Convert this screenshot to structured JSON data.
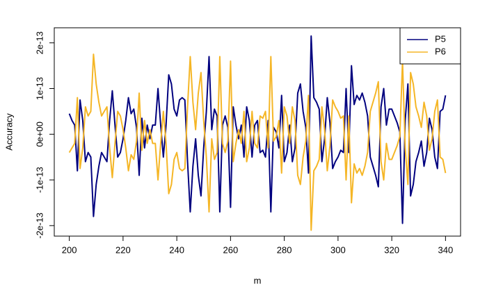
{
  "chart_data": {
    "type": "line",
    "xlabel": "m",
    "ylabel": "Accuracy",
    "x": [
      200,
      201,
      202,
      203,
      204,
      205,
      206,
      207,
      208,
      209,
      210,
      211,
      212,
      213,
      214,
      215,
      216,
      217,
      218,
      219,
      220,
      221,
      222,
      223,
      224,
      225,
      226,
      227,
      228,
      229,
      230,
      231,
      232,
      233,
      234,
      235,
      236,
      237,
      238,
      239,
      240,
      241,
      242,
      243,
      244,
      245,
      246,
      247,
      248,
      249,
      250,
      251,
      252,
      253,
      254,
      255,
      256,
      257,
      258,
      259,
      260,
      261,
      262,
      263,
      264,
      265,
      266,
      267,
      268,
      269,
      270,
      271,
      272,
      273,
      274,
      275,
      276,
      277,
      278,
      279,
      280,
      281,
      282,
      283,
      284,
      285,
      286,
      287,
      288,
      289,
      290,
      291,
      292,
      293,
      294,
      295,
      296,
      297,
      298,
      299,
      300,
      301,
      302,
      303,
      304,
      305,
      306,
      307,
      308,
      309,
      310,
      311,
      312,
      313,
      314,
      315,
      316,
      317,
      318,
      319,
      320,
      321,
      322,
      323,
      324,
      325,
      326,
      327,
      328,
      329,
      330,
      331,
      332,
      333,
      334,
      335,
      336,
      337,
      338,
      339,
      340
    ],
    "series": [
      {
        "name": "P5",
        "color": "#00007f",
        "values": [
          4.5e-14,
          3e-14,
          2e-14,
          -8e-14,
          7.5e-14,
          3e-14,
          -6e-14,
          -4e-14,
          -5e-14,
          -1.8e-13,
          -1.1e-13,
          -7e-14,
          -4e-14,
          -5e-14,
          -6e-14,
          3e-14,
          9.5e-14,
          2e-14,
          -5e-14,
          -4e-14,
          -1e-14,
          3e-14,
          8e-14,
          4.5e-14,
          5.5e-14,
          1.5e-14,
          -9e-14,
          3.5e-14,
          -3e-14,
          2e-14,
          -1e-14,
          2e-14,
          2e-14,
          1e-13,
          2e-14,
          -5e-14,
          2e-14,
          1.3e-13,
          1.1e-13,
          5.5e-14,
          4e-14,
          7.5e-14,
          8e-14,
          7.5e-14,
          -6e-14,
          -1.7e-13,
          -7e-14,
          -1e-14,
          -9e-14,
          -1.35e-13,
          -3e-14,
          5e-14,
          1.7e-13,
          1e-14,
          5.5e-14,
          4e-14,
          -1.7e-13,
          2e-14,
          4e-14,
          1.5e-14,
          -1.6e-13,
          6e-14,
          2e-14,
          -1e-14,
          2e-14,
          -5e-14,
          6e-14,
          3e-14,
          -5e-14,
          2e-14,
          3e-14,
          -4e-14,
          -3.5e-14,
          -5e-14,
          3e-14,
          -1.7e-13,
          1.5e-14,
          5e-15,
          -3e-14,
          8.5e-14,
          -6e-14,
          -4e-14,
          2e-14,
          -6e-14,
          -3e-14,
          9e-14,
          1.1e-13,
          5e-14,
          1.5e-14,
          -8.5e-14,
          2.15e-13,
          8e-14,
          7e-14,
          5.5e-14,
          -6e-14,
          -1e-14,
          8e-14,
          2.5e-14,
          -7.5e-14,
          -6e-14,
          -5e-14,
          -3.5e-14,
          -4e-14,
          1e-13,
          -4e-14,
          1.5e-13,
          6.5e-14,
          8.5e-14,
          7.5e-14,
          9e-14,
          7e-14,
          4e-14,
          -5e-14,
          -7e-14,
          -9e-14,
          -1.15e-13,
          6e-14,
          1e-13,
          2e-14,
          5.5e-14,
          5.5e-14,
          4e-14,
          2.5e-14,
          5e-15,
          -1.95e-13,
          3e-14,
          1.1e-13,
          -1.35e-13,
          -1.1e-13,
          -6e-14,
          -4e-14,
          -1.5e-14,
          -7e-14,
          -4e-14,
          3.5e-14,
          1e-14,
          -5e-14,
          -7.5e-14,
          5e-14,
          5.5e-14,
          8.5e-14
        ]
      },
      {
        "name": "P6",
        "color": "#f5b626",
        "values": [
          -4e-14,
          -3e-14,
          -2e-14,
          8e-14,
          -7.5e-14,
          -3e-14,
          6e-14,
          4e-14,
          5e-14,
          1.75e-13,
          1.1e-13,
          7e-14,
          4e-14,
          5e-14,
          6e-14,
          -3e-14,
          -9.5e-14,
          -2e-14,
          5e-14,
          4e-14,
          1e-14,
          -3e-14,
          -8e-14,
          -4.5e-14,
          -5.5e-14,
          -1.5e-14,
          9e-14,
          -3.5e-14,
          3e-14,
          -2e-14,
          1e-14,
          -2e-14,
          -2e-14,
          -1e-13,
          -2e-14,
          5e-14,
          -2e-14,
          -1.3e-13,
          -1.1e-13,
          -5.5e-14,
          -4e-14,
          -7.5e-14,
          -8e-14,
          -7.5e-14,
          6e-14,
          1.7e-13,
          7e-14,
          1e-14,
          9e-14,
          1.35e-13,
          3e-14,
          -5e-14,
          -1.7e-13,
          -1e-14,
          -5.5e-14,
          -4e-14,
          1.7e-13,
          -2e-14,
          -4e-14,
          -1.5e-14,
          1.6e-13,
          -6e-14,
          -2e-14,
          1e-14,
          -2e-14,
          5e-14,
          -6e-14,
          -3e-14,
          5e-14,
          -2e-14,
          -3e-14,
          4e-14,
          3.5e-14,
          5e-14,
          -3e-14,
          1.7e-13,
          -1.5e-14,
          -5e-15,
          3e-14,
          -8.5e-14,
          6e-14,
          4e-14,
          -2e-14,
          6e-14,
          3e-14,
          -9e-14,
          -1.1e-13,
          -5e-14,
          -1.5e-14,
          8.5e-14,
          -2.1e-13,
          -8e-14,
          -7e-14,
          -5.5e-14,
          6e-14,
          1e-14,
          -8e-14,
          -2.5e-14,
          7.5e-14,
          6e-14,
          5e-14,
          3.5e-14,
          4e-14,
          -1e-13,
          4e-14,
          -1.5e-13,
          -6.5e-14,
          -8.5e-14,
          -7.5e-14,
          -9e-14,
          -7e-14,
          -4e-14,
          5e-14,
          7e-14,
          9e-14,
          1.15e-13,
          -6e-14,
          -1e-13,
          -2e-14,
          -5.5e-14,
          -5.5e-14,
          -4e-14,
          -2.5e-14,
          -5e-15,
          1.6e-13,
          -3e-14,
          -1.1e-13,
          1.35e-13,
          1.1e-13,
          6e-14,
          4e-14,
          1.5e-14,
          7e-14,
          4e-14,
          -3.5e-14,
          -1e-14,
          5e-14,
          7.5e-14,
          -5e-14,
          -5.5e-14,
          -8.5e-14
        ]
      }
    ],
    "xlim": [
      194.4,
      345.6
    ],
    "xticks": [
      200,
      220,
      240,
      260,
      280,
      300,
      320,
      340
    ],
    "ylim": [
      -2.23e-13,
      2.33e-13
    ],
    "yticks": [
      -2e-13,
      -1e-13,
      {
        "value": 0,
        "label": "0e+00"
      },
      1e-13,
      2e-13
    ],
    "legend": "top-right"
  }
}
